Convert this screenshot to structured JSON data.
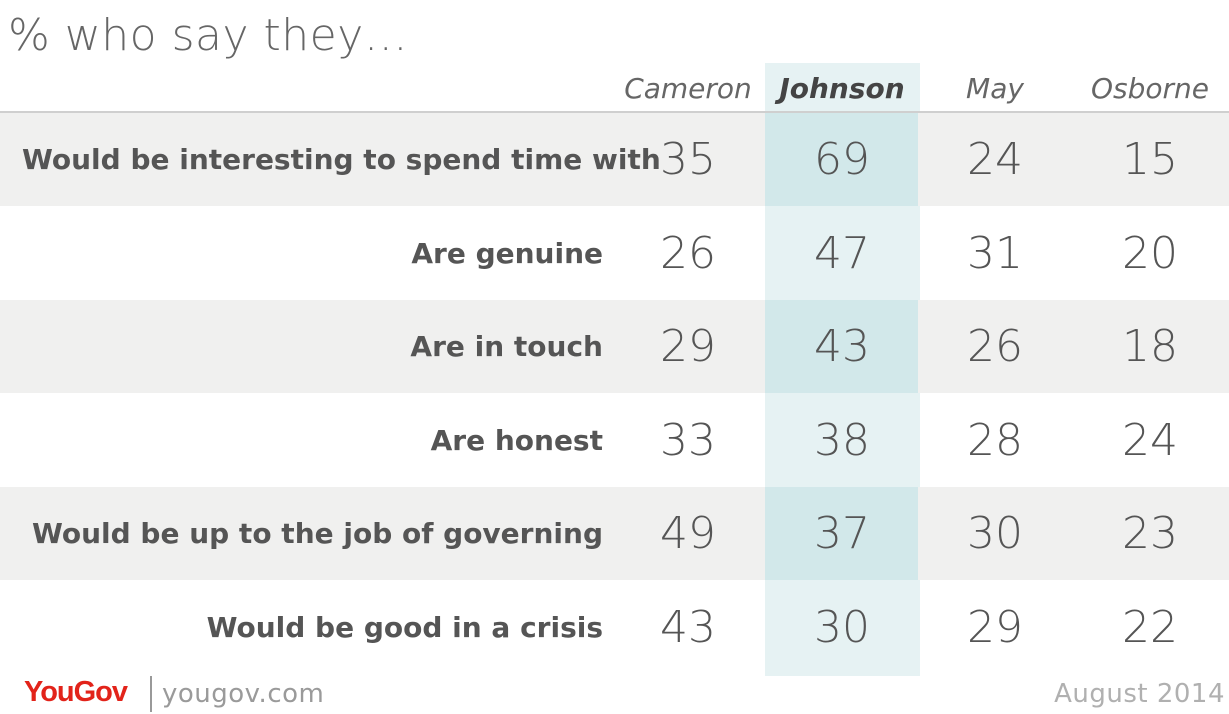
{
  "chart_data": {
    "type": "table",
    "title": "% who say they…",
    "columns": [
      "Cameron",
      "Johnson",
      "May",
      "Osborne"
    ],
    "highlighted_column": "Johnson",
    "rows": [
      {
        "label": "Would be interesting to spend time with",
        "values": [
          35,
          69,
          24,
          15
        ]
      },
      {
        "label": "Are genuine",
        "values": [
          26,
          47,
          31,
          20
        ]
      },
      {
        "label": "Are in touch",
        "values": [
          29,
          43,
          26,
          18
        ]
      },
      {
        "label": "Are honest",
        "values": [
          33,
          38,
          28,
          24
        ]
      },
      {
        "label": "Would be up to the job of governing",
        "values": [
          49,
          37,
          30,
          23
        ]
      },
      {
        "label": "Would be good in a crisis",
        "values": [
          43,
          30,
          29,
          22
        ]
      }
    ]
  },
  "footer": {
    "brand": "YouGov",
    "url": "yougov.com",
    "date": "August 2014"
  },
  "colors": {
    "brand_red": "#e2231a",
    "highlight_light": "#e6f2f3",
    "highlight_shaded": "#d2e8ea",
    "row_shade": "#f0f0ef"
  }
}
